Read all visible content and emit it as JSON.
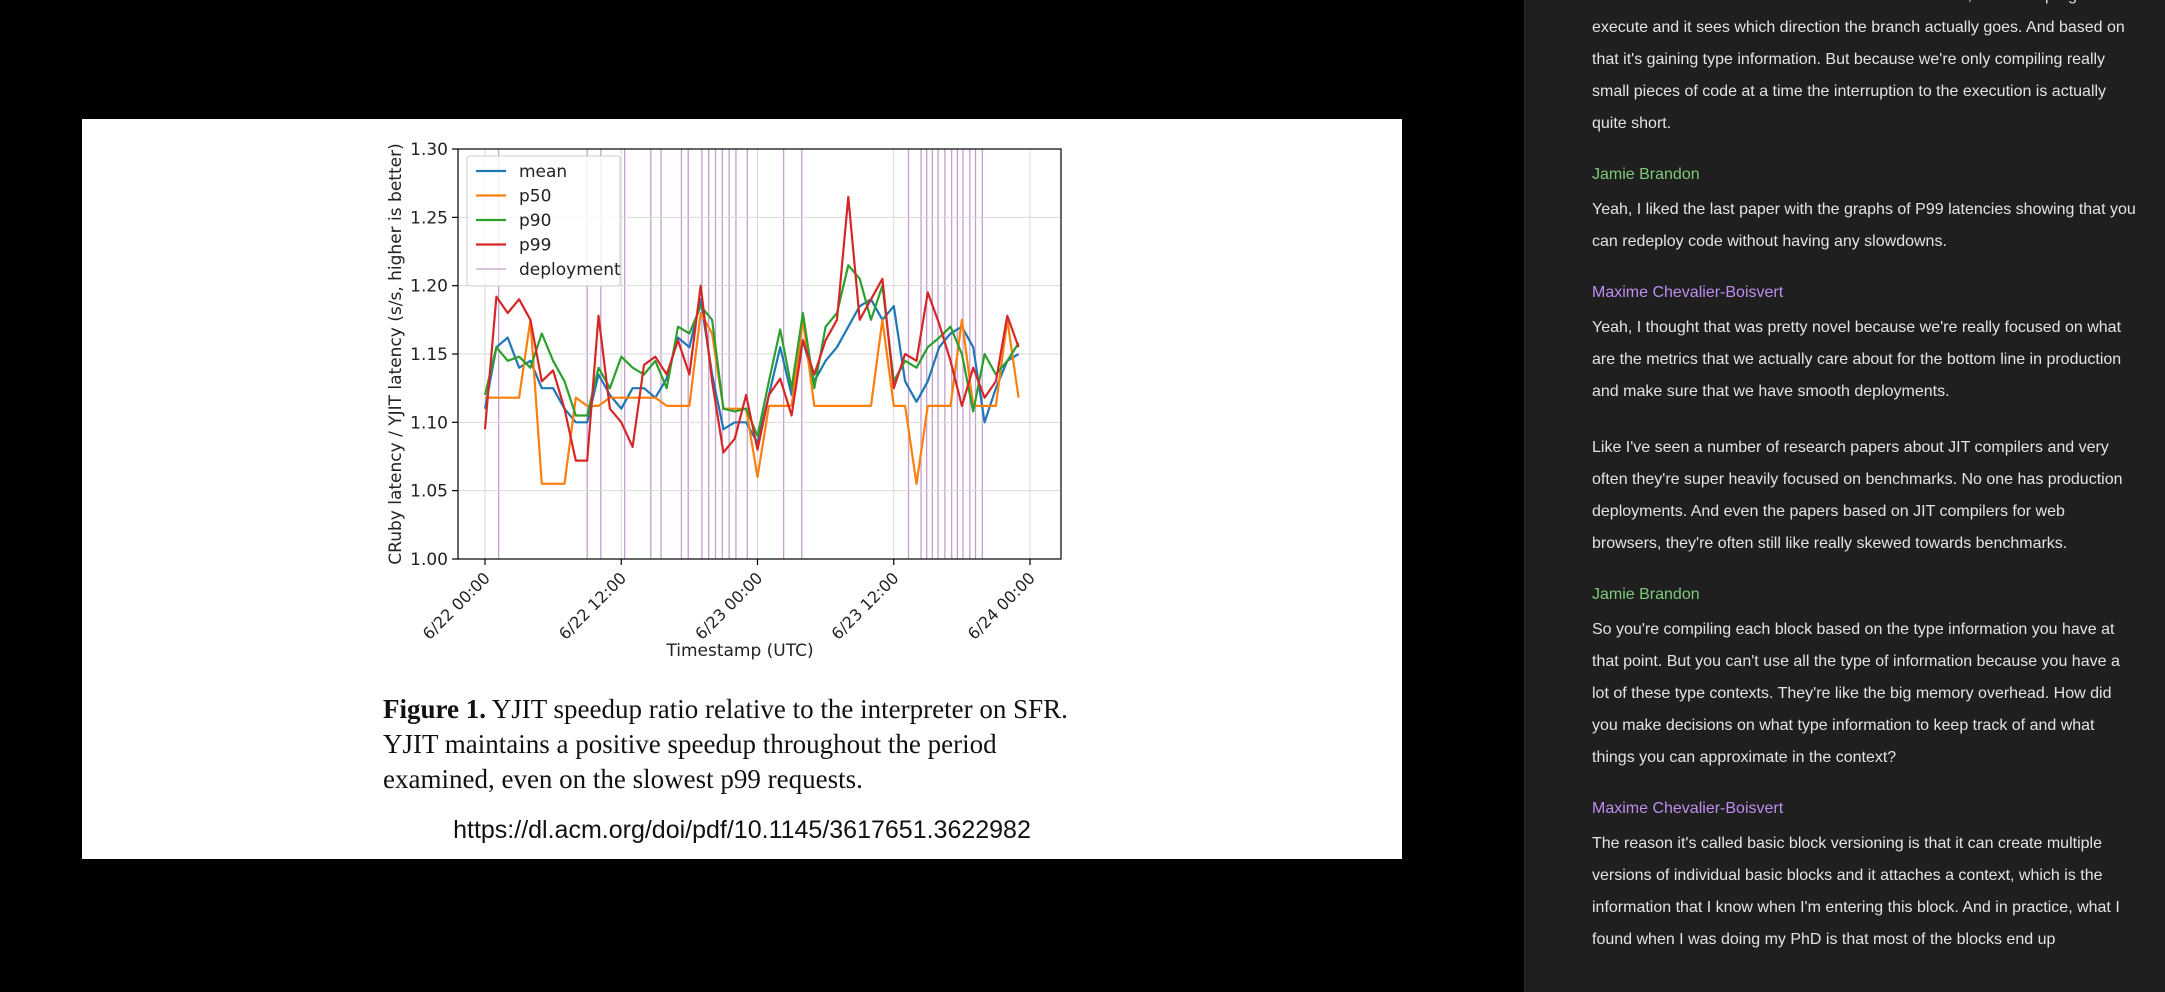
{
  "slide": {
    "caption_label": "Figure 1.",
    "caption_text": " YJIT speedup ratio relative to the interpreter on SFR. YJIT maintains a positive speedup throughout the period examined, even on the slowest p99 requests.",
    "url": "https://dl.acm.org/doi/pdf/10.1145/3617651.3622982"
  },
  "chart_data": {
    "type": "line",
    "xlabel": "Timestamp (UTC)",
    "ylabel": "CRuby latency / YJIT latency (s/s, higher is better)",
    "ylim": [
      1.0,
      1.3
    ],
    "yticks": [
      "1.00",
      "1.05",
      "1.10",
      "1.15",
      "1.20",
      "1.25",
      "1.30"
    ],
    "xticks": [
      "6/22 00:00",
      "6/22 12:00",
      "6/23 00:00",
      "6/23 12:00",
      "6/24 00:00"
    ],
    "x_hours_range": [
      0,
      48
    ],
    "legend_position": "top-left",
    "grid": true,
    "deployments_hours": [
      1.2,
      9.0,
      10.2,
      12.3,
      14.6,
      15.5,
      17.3,
      17.9,
      19.1,
      19.7,
      20.3,
      20.9,
      21.5,
      22.1,
      23.1,
      26.3,
      27.9,
      37.3,
      38.4,
      38.9,
      39.4,
      39.9,
      40.5,
      41.1,
      41.6,
      42.1,
      42.7,
      43.2,
      43.8
    ],
    "series": [
      {
        "name": "mean",
        "color": "#1f77b4",
        "x": [
          0,
          1,
          2,
          3,
          4,
          5,
          6,
          7,
          8,
          9,
          10,
          11,
          12,
          13,
          14,
          15,
          16,
          17,
          18,
          19,
          20,
          21,
          22,
          23,
          24,
          25,
          26,
          27,
          28,
          29,
          30,
          31,
          32,
          33,
          34,
          35,
          36,
          37,
          38,
          39,
          40,
          41,
          42,
          43,
          44,
          45,
          46,
          47
        ],
        "y": [
          1.11,
          1.155,
          1.162,
          1.14,
          1.145,
          1.125,
          1.125,
          1.11,
          1.1,
          1.1,
          1.135,
          1.12,
          1.11,
          1.125,
          1.125,
          1.118,
          1.132,
          1.162,
          1.155,
          1.19,
          1.135,
          1.095,
          1.1,
          1.1,
          1.085,
          1.12,
          1.155,
          1.12,
          1.16,
          1.13,
          1.145,
          1.155,
          1.17,
          1.185,
          1.19,
          1.175,
          1.185,
          1.13,
          1.115,
          1.13,
          1.155,
          1.165,
          1.17,
          1.155,
          1.1,
          1.125,
          1.145,
          1.15
        ]
      },
      {
        "name": "p50",
        "color": "#ff7f0e",
        "x": [
          0,
          1,
          2,
          3,
          4,
          5,
          6,
          7,
          8,
          9,
          10,
          11,
          12,
          13,
          14,
          15,
          16,
          17,
          18,
          19,
          20,
          21,
          22,
          23,
          24,
          25,
          26,
          27,
          28,
          29,
          30,
          31,
          32,
          33,
          34,
          35,
          36,
          37,
          38,
          39,
          40,
          41,
          42,
          43,
          44,
          45,
          46,
          47
        ],
        "y": [
          1.118,
          1.118,
          1.118,
          1.118,
          1.175,
          1.055,
          1.055,
          1.055,
          1.118,
          1.112,
          1.112,
          1.118,
          1.118,
          1.118,
          1.118,
          1.118,
          1.112,
          1.112,
          1.112,
          1.18,
          1.165,
          1.11,
          1.11,
          1.11,
          1.06,
          1.112,
          1.112,
          1.112,
          1.175,
          1.112,
          1.112,
          1.112,
          1.112,
          1.112,
          1.112,
          1.175,
          1.112,
          1.112,
          1.055,
          1.112,
          1.112,
          1.112,
          1.175,
          1.112,
          1.112,
          1.112,
          1.175,
          1.118
        ]
      },
      {
        "name": "p90",
        "color": "#2ca02c",
        "x": [
          0,
          1,
          2,
          3,
          4,
          5,
          6,
          7,
          8,
          9,
          10,
          11,
          12,
          13,
          14,
          15,
          16,
          17,
          18,
          19,
          20,
          21,
          22,
          23,
          24,
          25,
          26,
          27,
          28,
          29,
          30,
          31,
          32,
          33,
          34,
          35,
          36,
          37,
          38,
          39,
          40,
          41,
          42,
          43,
          44,
          45,
          46,
          47
        ],
        "y": [
          1.12,
          1.155,
          1.145,
          1.148,
          1.14,
          1.165,
          1.145,
          1.13,
          1.105,
          1.105,
          1.14,
          1.125,
          1.148,
          1.14,
          1.135,
          1.145,
          1.125,
          1.17,
          1.165,
          1.185,
          1.175,
          1.11,
          1.108,
          1.11,
          1.09,
          1.13,
          1.168,
          1.125,
          1.18,
          1.125,
          1.17,
          1.18,
          1.215,
          1.205,
          1.175,
          1.2,
          1.13,
          1.145,
          1.14,
          1.155,
          1.162,
          1.17,
          1.15,
          1.108,
          1.15,
          1.135,
          1.145,
          1.158
        ]
      },
      {
        "name": "p99",
        "color": "#d62728",
        "x": [
          0,
          1,
          2,
          3,
          4,
          5,
          6,
          7,
          8,
          9,
          10,
          11,
          12,
          13,
          14,
          15,
          16,
          17,
          18,
          19,
          20,
          21,
          22,
          23,
          24,
          25,
          26,
          27,
          28,
          29,
          30,
          31,
          32,
          33,
          34,
          35,
          36,
          37,
          38,
          39,
          40,
          41,
          42,
          43,
          44,
          45,
          46,
          47
        ],
        "y": [
          1.095,
          1.192,
          1.18,
          1.19,
          1.175,
          1.13,
          1.138,
          1.11,
          1.072,
          1.072,
          1.178,
          1.11,
          1.1,
          1.082,
          1.142,
          1.148,
          1.135,
          1.16,
          1.135,
          1.2,
          1.13,
          1.078,
          1.088,
          1.12,
          1.08,
          1.12,
          1.132,
          1.105,
          1.16,
          1.135,
          1.16,
          1.175,
          1.265,
          1.175,
          1.19,
          1.205,
          1.125,
          1.15,
          1.145,
          1.195,
          1.172,
          1.145,
          1.112,
          1.14,
          1.118,
          1.13,
          1.178,
          1.155
        ]
      },
      {
        "name": "deployment",
        "color": "#c59fce"
      }
    ]
  },
  "transcript": {
    "entries": [
      {
        "speaker": "",
        "speaker_class": "",
        "paragraphs": [
          "And so when YJIT encounters one of these branches, it lets the program execute and it sees which direction the branch actually goes. And based on that it's gaining type information. But because we're only compiling really small pieces of code at a time the interruption to the execution is actually quite short."
        ]
      },
      {
        "speaker": "Jamie Brandon",
        "speaker_class": "jamie",
        "paragraphs": [
          "Yeah, I liked the last paper with the graphs of P99 latencies showing that you can redeploy code without having any slowdowns."
        ]
      },
      {
        "speaker": "Maxime Chevalier-Boisvert",
        "speaker_class": "maxime",
        "paragraphs": [
          "Yeah, I thought that was pretty novel because we're really focused on what are the metrics that we actually care about for the bottom line in production and make sure that we have smooth deployments.",
          "Like I've seen a number of research papers about JIT compilers and very often they're super heavily focused on benchmarks. No one has production deployments. And even the papers based on JIT compilers for web browsers, they're often still like really skewed towards benchmarks."
        ]
      },
      {
        "speaker": "Jamie Brandon",
        "speaker_class": "jamie",
        "paragraphs": [
          "So you're compiling each block based on the type information you have at that point. But you can't use all the type of information because you have a lot of these type contexts. They're like the big memory overhead. How did you make decisions on what type information to keep track of and what things you can approximate in the context?"
        ]
      },
      {
        "speaker": "Maxime Chevalier-Boisvert",
        "speaker_class": "maxime",
        "paragraphs": [
          "The reason it's called basic block versioning is that it can create multiple versions of individual basic blocks and it attaches a context, which is the information that I know when I'm entering this block. And in practice, what I found when I was doing my PhD is that most of the blocks end up"
        ]
      }
    ]
  }
}
